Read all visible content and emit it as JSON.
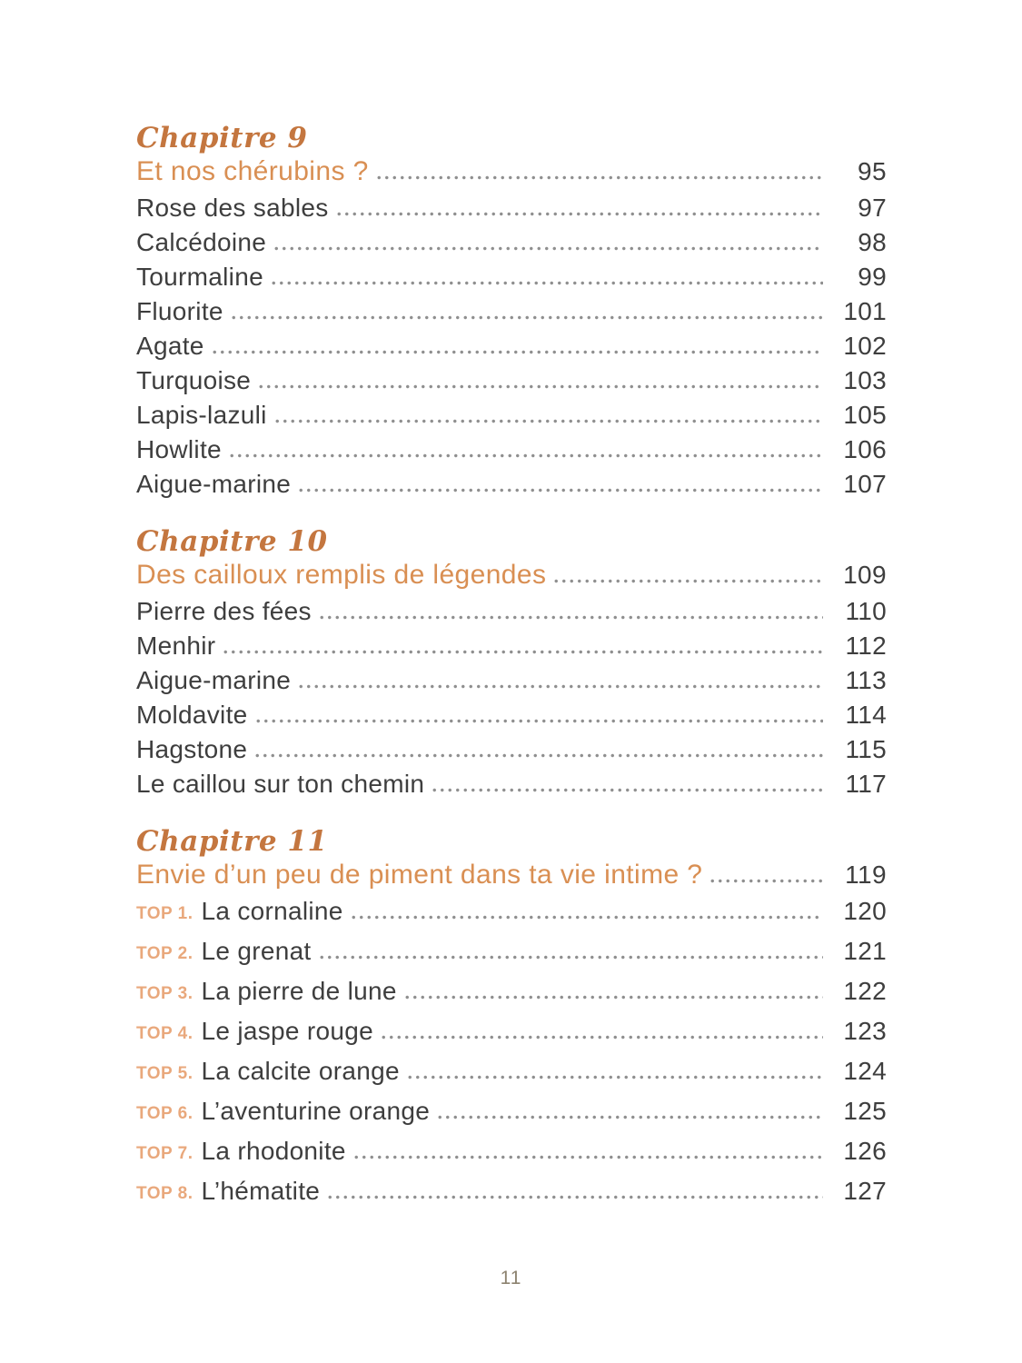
{
  "page": {
    "footer_page_number": "11"
  },
  "colors": {
    "chapter_script_label": "#c4763f",
    "chapter_title": "#d98f53",
    "entry_text": "#3e3e3e",
    "top_badge": "#e9a87c",
    "dot_leader": "#8f8f8f",
    "footer_text": "#8d8370",
    "background": "#ffffff"
  },
  "toc": {
    "chapters": [
      {
        "label": "Chapitre 9",
        "title": "Et nos chérubins ?",
        "page": "95",
        "entries": [
          {
            "label": "Rose des sables",
            "page": "97"
          },
          {
            "label": "Calcédoine",
            "page": "98"
          },
          {
            "label": "Tourmaline",
            "page": "99"
          },
          {
            "label": "Fluorite",
            "page": "101"
          },
          {
            "label": "Agate",
            "page": "102"
          },
          {
            "label": "Turquoise",
            "page": "103"
          },
          {
            "label": "Lapis-lazuli",
            "page": "105"
          },
          {
            "label": "Howlite",
            "page": "106"
          },
          {
            "label": "Aigue-marine",
            "page": "107"
          }
        ]
      },
      {
        "label": "Chapitre 10",
        "title": "Des cailloux remplis de légendes",
        "page": "109",
        "entries": [
          {
            "label": "Pierre des fées",
            "page": "110"
          },
          {
            "label": "Menhir",
            "page": "112"
          },
          {
            "label": "Aigue-marine",
            "page": "113"
          },
          {
            "label": "Moldavite",
            "page": "114"
          },
          {
            "label": "Hagstone",
            "page": "115"
          },
          {
            "label": "Le caillou sur ton chemin",
            "page": "117"
          }
        ]
      },
      {
        "label": "Chapitre 11",
        "title": "Envie d’un peu de piment dans ta vie intime ?",
        "page": "119",
        "entries": [
          {
            "prefix": "TOP 1.",
            "label": "La cornaline",
            "page": "120"
          },
          {
            "prefix": "TOP 2.",
            "label": "Le grenat",
            "page": "121"
          },
          {
            "prefix": "TOP 3.",
            "label": "La pierre de lune",
            "page": "122"
          },
          {
            "prefix": "TOP 4.",
            "label": "Le jaspe rouge",
            "page": "123"
          },
          {
            "prefix": "TOP 5.",
            "label": "La calcite orange",
            "page": "124"
          },
          {
            "prefix": "TOP 6.",
            "label": "L’aventurine orange",
            "page": "125"
          },
          {
            "prefix": "TOP 7.",
            "label": "La rhodonite",
            "page": "126"
          },
          {
            "prefix": "TOP 8.",
            "label": "L’hématite",
            "page": "127"
          }
        ]
      }
    ]
  }
}
